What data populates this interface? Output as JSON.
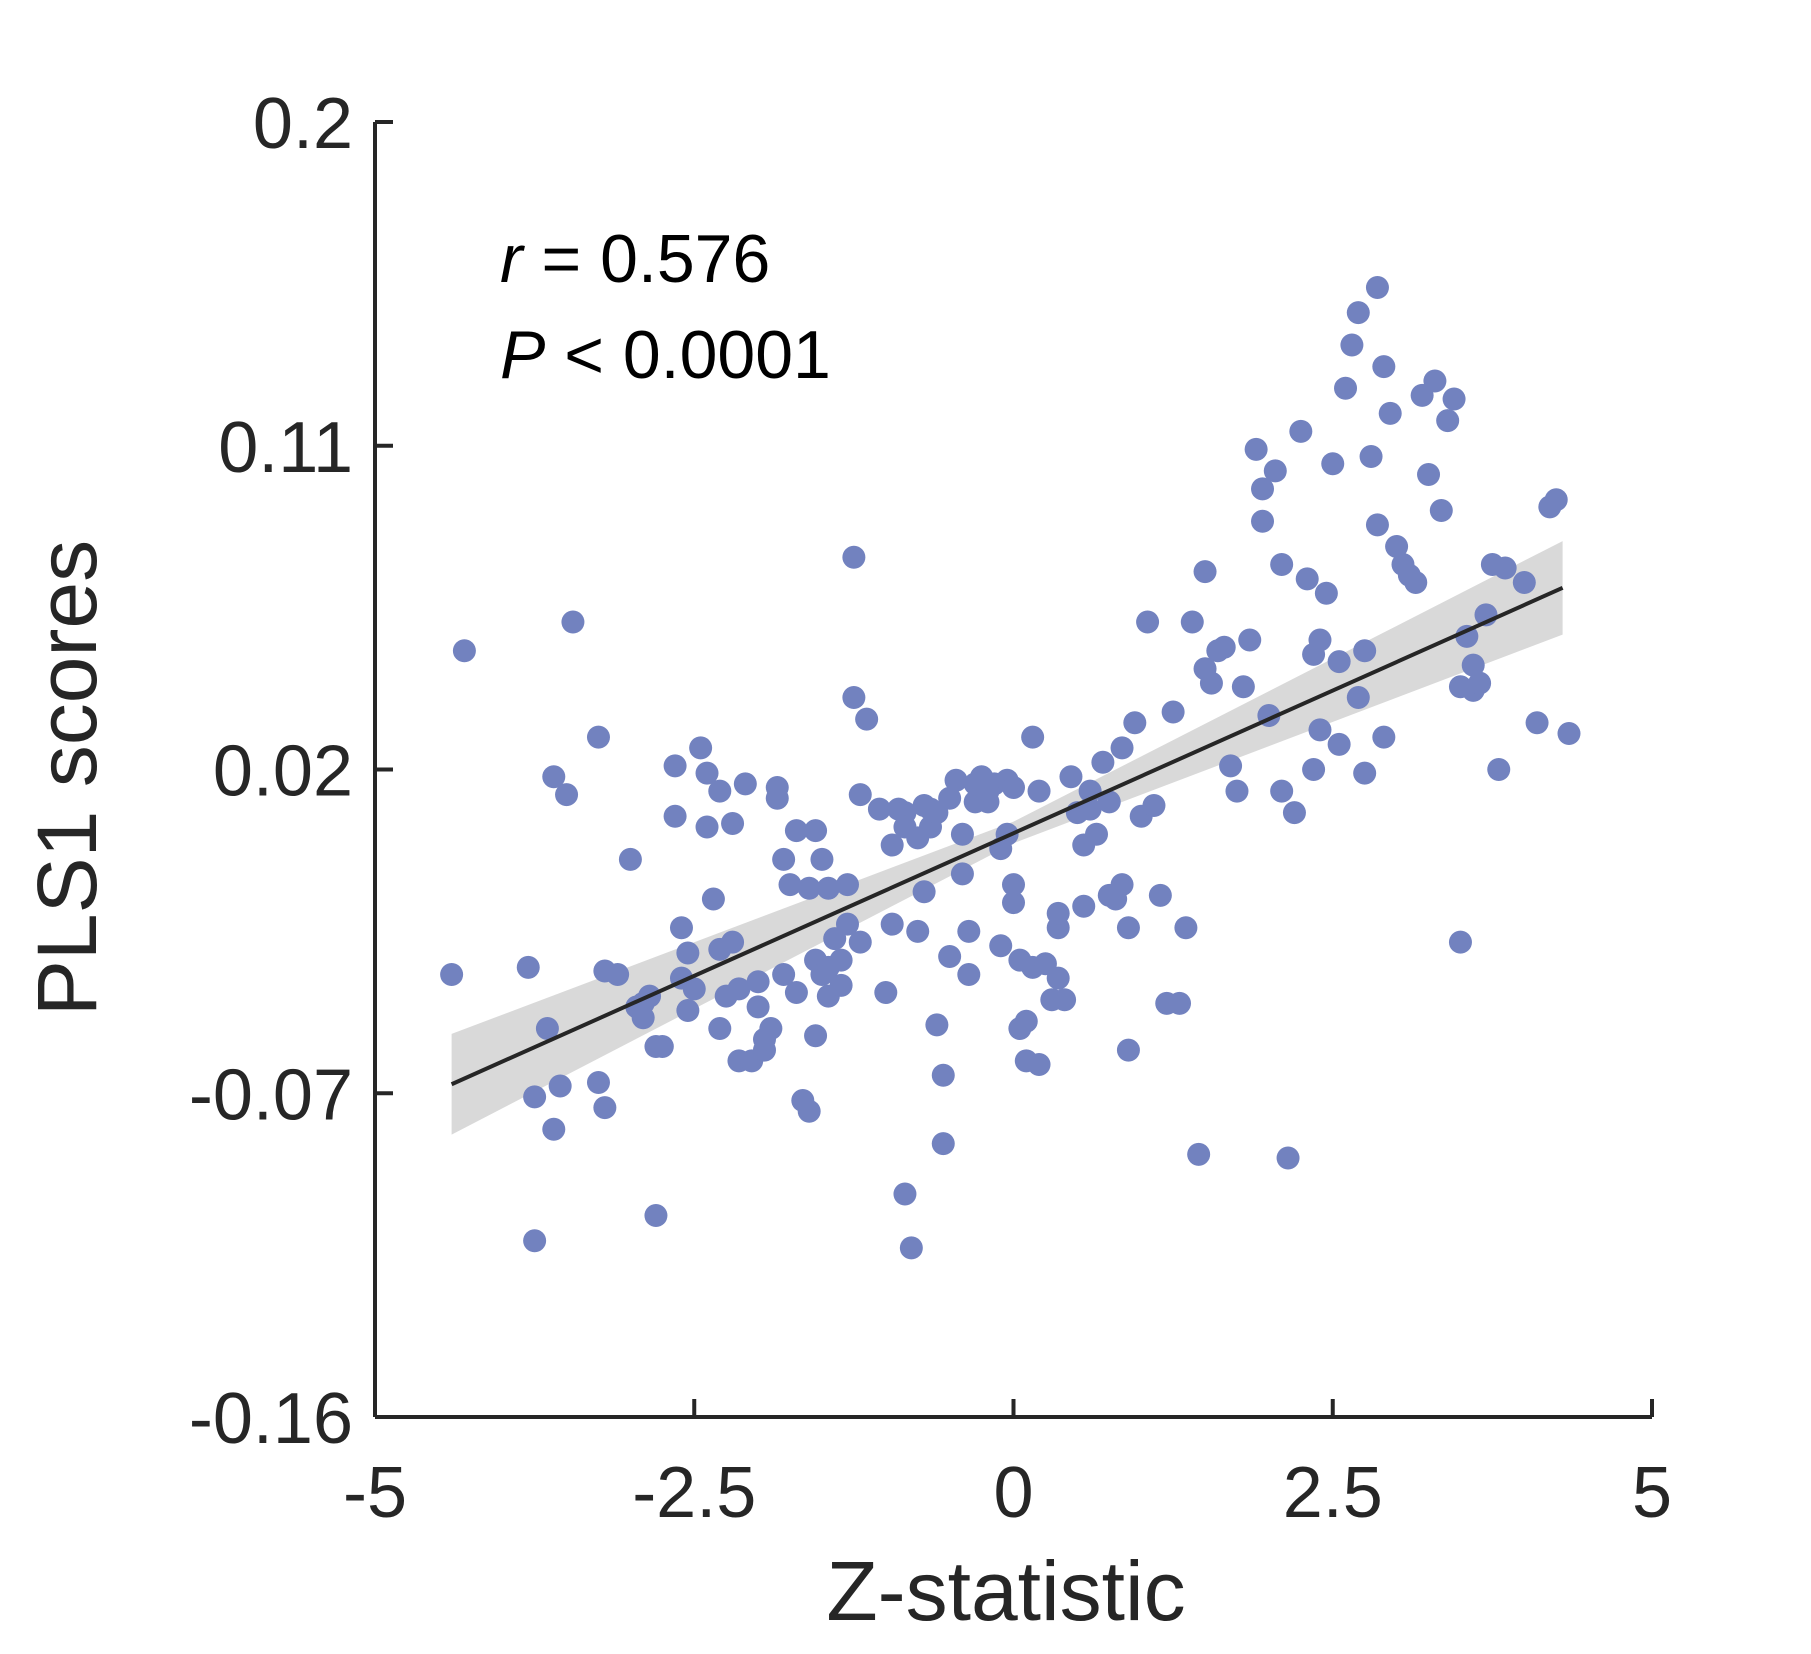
{
  "chart_data": {
    "type": "scatter",
    "title": "",
    "xlabel": "Z-statistic",
    "ylabel": "PLS1 scores",
    "xlim": [
      -5,
      5
    ],
    "ylim": [
      -0.16,
      0.2
    ],
    "xticks": [
      "-5",
      "-2.5",
      "0",
      "2.5",
      "5"
    ],
    "xtick_values": [
      -5,
      -2.5,
      0,
      2.5,
      5
    ],
    "yticks": [
      "-0.16",
      "-0.07",
      "0.02",
      "0.11",
      "0.2"
    ],
    "ytick_values": [
      -0.16,
      -0.07,
      0.02,
      0.11,
      0.2
    ],
    "grid": false,
    "annotation": {
      "r_symbol": "r",
      "r_text": " = 0.576",
      "p_symbol": "P",
      "p_text": " < 0.0001"
    },
    "colors": {
      "points": "#7282bf",
      "fit_line": "#262626",
      "ci_band": "#d9d9d9",
      "axes": "#262626"
    },
    "fit": {
      "x": [
        -4.4,
        4.3
      ],
      "y": [
        -0.0675,
        0.0705
      ]
    },
    "confidence_band": {
      "x": [
        -4.4,
        0.0,
        4.3
      ],
      "lower": [
        -0.0815,
        -0.0005,
        0.0575
      ],
      "upper": [
        -0.0535,
        0.0055,
        0.0835
      ]
    },
    "points": [
      [
        -4.4,
        -0.037
      ],
      [
        -4.3,
        0.053
      ],
      [
        -3.8,
        -0.035
      ],
      [
        -3.65,
        -0.052
      ],
      [
        -3.75,
        -0.071
      ],
      [
        -3.75,
        -0.111
      ],
      [
        -3.6,
        0.018
      ],
      [
        -3.5,
        0.013
      ],
      [
        -3.55,
        -0.068
      ],
      [
        -3.6,
        -0.08
      ],
      [
        -3.45,
        0.061
      ],
      [
        -3.25,
        0.029
      ],
      [
        -3.25,
        -0.067
      ],
      [
        -3.2,
        -0.074
      ],
      [
        -3.2,
        -0.036
      ],
      [
        -3.1,
        -0.037
      ],
      [
        -3.0,
        -0.005
      ],
      [
        -2.95,
        -0.046
      ],
      [
        -2.9,
        -0.045
      ],
      [
        -2.85,
        -0.043
      ],
      [
        -2.9,
        -0.049
      ],
      [
        -2.8,
        -0.057
      ],
      [
        -2.75,
        -0.057
      ],
      [
        -2.8,
        -0.104
      ],
      [
        -2.65,
        0.021
      ],
      [
        -2.65,
        0.007
      ],
      [
        -2.6,
        -0.038
      ],
      [
        -2.6,
        -0.024
      ],
      [
        -2.55,
        -0.031
      ],
      [
        -2.55,
        -0.047
      ],
      [
        -2.5,
        -0.041
      ],
      [
        -2.45,
        0.026
      ],
      [
        -2.4,
        0.019
      ],
      [
        -2.4,
        0.004
      ],
      [
        -2.35,
        -0.016
      ],
      [
        -2.3,
        -0.03
      ],
      [
        -2.3,
        -0.052
      ],
      [
        -2.3,
        0.014
      ],
      [
        -2.25,
        -0.043
      ],
      [
        -2.2,
        -0.028
      ],
      [
        -2.15,
        -0.061
      ],
      [
        -2.2,
        0.005
      ],
      [
        -2.15,
        -0.041
      ],
      [
        -2.1,
        0.016
      ],
      [
        -2.05,
        -0.061
      ],
      [
        -2.0,
        -0.039
      ],
      [
        -2.0,
        -0.046
      ],
      [
        -1.95,
        -0.058
      ],
      [
        -1.9,
        -0.052
      ],
      [
        -1.95,
        -0.055
      ],
      [
        -1.85,
        0.012
      ],
      [
        -1.85,
        0.015
      ],
      [
        -1.8,
        -0.005
      ],
      [
        -1.8,
        -0.037
      ],
      [
        -1.75,
        -0.012
      ],
      [
        -1.7,
        0.003
      ],
      [
        -1.7,
        -0.042
      ],
      [
        -1.65,
        -0.072
      ],
      [
        -1.6,
        -0.075
      ],
      [
        -1.6,
        -0.013
      ],
      [
        -1.55,
        -0.033
      ],
      [
        -1.55,
        0.003
      ],
      [
        -1.55,
        -0.054
      ],
      [
        -1.5,
        -0.037
      ],
      [
        -1.5,
        -0.005
      ],
      [
        -1.45,
        -0.035
      ],
      [
        -1.45,
        -0.043
      ],
      [
        -1.45,
        -0.013
      ],
      [
        -1.4,
        -0.027
      ],
      [
        -1.35,
        -0.04
      ],
      [
        -1.35,
        -0.033
      ],
      [
        -1.3,
        -0.023
      ],
      [
        -1.3,
        -0.012
      ],
      [
        -1.25,
        0.04
      ],
      [
        -1.2,
        0.013
      ],
      [
        -1.25,
        0.079
      ],
      [
        -1.2,
        -0.028
      ],
      [
        -1.15,
        0.034
      ],
      [
        -1.05,
        0.009
      ],
      [
        -1.0,
        -0.042
      ],
      [
        -0.95,
        -0.023
      ],
      [
        -0.95,
        -0.001
      ],
      [
        -0.9,
        0.009
      ],
      [
        -0.85,
        0.008
      ],
      [
        -0.85,
        0.004
      ],
      [
        -0.85,
        -0.098
      ],
      [
        -0.8,
        -0.113
      ],
      [
        -0.75,
        -0.025
      ],
      [
        -0.75,
        0.001
      ],
      [
        -0.7,
        -0.014
      ],
      [
        -0.7,
        0.01
      ],
      [
        -0.65,
        0.009
      ],
      [
        -0.65,
        0.004
      ],
      [
        -0.6,
        0.008
      ],
      [
        -0.6,
        -0.051
      ],
      [
        -0.55,
        -0.065
      ],
      [
        -0.55,
        -0.084
      ],
      [
        -0.5,
        -0.032
      ],
      [
        -0.5,
        0.012
      ],
      [
        -0.45,
        0.017
      ],
      [
        -0.4,
        -0.009
      ],
      [
        -0.4,
        0.002
      ],
      [
        -0.35,
        -0.025
      ],
      [
        -0.35,
        -0.037
      ],
      [
        -0.3,
        0.011
      ],
      [
        -0.3,
        0.016
      ],
      [
        -0.25,
        0.018
      ],
      [
        -0.2,
        0.011
      ],
      [
        -0.2,
        0.014
      ],
      [
        -0.15,
        0.016
      ],
      [
        -0.1,
        -0.002
      ],
      [
        -0.1,
        -0.029
      ],
      [
        -0.05,
        0.002
      ],
      [
        -0.05,
        0.017
      ],
      [
        0.0,
        -0.017
      ],
      [
        0.0,
        -0.012
      ],
      [
        0.0,
        0.015
      ],
      [
        0.05,
        -0.033
      ],
      [
        0.05,
        -0.052
      ],
      [
        0.1,
        -0.05
      ],
      [
        0.1,
        -0.061
      ],
      [
        0.15,
        0.029
      ],
      [
        0.15,
        -0.035
      ],
      [
        0.2,
        -0.062
      ],
      [
        0.2,
        0.014
      ],
      [
        0.25,
        -0.034
      ],
      [
        0.3,
        -0.044
      ],
      [
        0.35,
        -0.024
      ],
      [
        0.35,
        -0.02
      ],
      [
        0.35,
        -0.038
      ],
      [
        0.4,
        -0.044
      ],
      [
        0.45,
        0.018
      ],
      [
        0.5,
        0.008
      ],
      [
        0.55,
        -0.001
      ],
      [
        0.55,
        -0.018
      ],
      [
        0.6,
        0.014
      ],
      [
        0.6,
        0.009
      ],
      [
        0.65,
        0.002
      ],
      [
        0.7,
        0.022
      ],
      [
        0.75,
        0.011
      ],
      [
        0.75,
        -0.015
      ],
      [
        0.8,
        -0.016
      ],
      [
        0.85,
        -0.012
      ],
      [
        0.85,
        0.026
      ],
      [
        0.9,
        -0.024
      ],
      [
        0.9,
        -0.058
      ],
      [
        0.95,
        0.033
      ],
      [
        1.0,
        0.007
      ],
      [
        1.05,
        0.061
      ],
      [
        1.1,
        0.01
      ],
      [
        1.15,
        -0.015
      ],
      [
        1.2,
        -0.045
      ],
      [
        1.25,
        0.036
      ],
      [
        1.3,
        -0.045
      ],
      [
        1.35,
        -0.024
      ],
      [
        1.4,
        0.061
      ],
      [
        1.45,
        -0.087
      ],
      [
        1.5,
        0.048
      ],
      [
        1.5,
        0.075
      ],
      [
        1.55,
        0.044
      ],
      [
        1.6,
        0.053
      ],
      [
        1.65,
        0.054
      ],
      [
        1.7,
        0.021
      ],
      [
        1.75,
        0.014
      ],
      [
        1.8,
        0.043
      ],
      [
        1.85,
        0.056
      ],
      [
        1.9,
        0.109
      ],
      [
        1.95,
        0.089
      ],
      [
        1.95,
        0.098
      ],
      [
        2.0,
        0.035
      ],
      [
        2.05,
        0.103
      ],
      [
        2.1,
        0.014
      ],
      [
        2.1,
        0.077
      ],
      [
        2.15,
        -0.088
      ],
      [
        2.2,
        0.008
      ],
      [
        2.25,
        0.114
      ],
      [
        2.3,
        0.073
      ],
      [
        2.35,
        0.02
      ],
      [
        2.35,
        0.052
      ],
      [
        2.4,
        0.031
      ],
      [
        2.4,
        0.056
      ],
      [
        2.45,
        0.069
      ],
      [
        2.5,
        0.105
      ],
      [
        2.55,
        0.027
      ],
      [
        2.55,
        0.05
      ],
      [
        2.6,
        0.126
      ],
      [
        2.65,
        0.138
      ],
      [
        2.7,
        0.147
      ],
      [
        2.7,
        0.04
      ],
      [
        2.75,
        0.019
      ],
      [
        2.75,
        0.053
      ],
      [
        2.8,
        0.107
      ],
      [
        2.85,
        0.154
      ],
      [
        2.85,
        0.088
      ],
      [
        2.9,
        0.132
      ],
      [
        2.9,
        0.029
      ],
      [
        2.95,
        0.119
      ],
      [
        3.0,
        0.082
      ],
      [
        3.05,
        0.077
      ],
      [
        3.1,
        0.074
      ],
      [
        3.15,
        0.072
      ],
      [
        3.2,
        0.124
      ],
      [
        3.25,
        0.102
      ],
      [
        3.3,
        0.128
      ],
      [
        3.35,
        0.092
      ],
      [
        3.4,
        0.117
      ],
      [
        3.45,
        0.123
      ],
      [
        3.5,
        0.043
      ],
      [
        3.5,
        -0.028
      ],
      [
        3.55,
        0.057
      ],
      [
        3.6,
        0.049
      ],
      [
        3.6,
        0.042
      ],
      [
        3.65,
        0.044
      ],
      [
        3.7,
        0.063
      ],
      [
        3.75,
        0.077
      ],
      [
        3.8,
        0.02
      ],
      [
        3.85,
        0.076
      ],
      [
        4.0,
        0.072
      ],
      [
        4.1,
        0.033
      ],
      [
        4.2,
        0.093
      ],
      [
        4.25,
        0.095
      ],
      [
        4.35,
        0.03
      ]
    ]
  }
}
